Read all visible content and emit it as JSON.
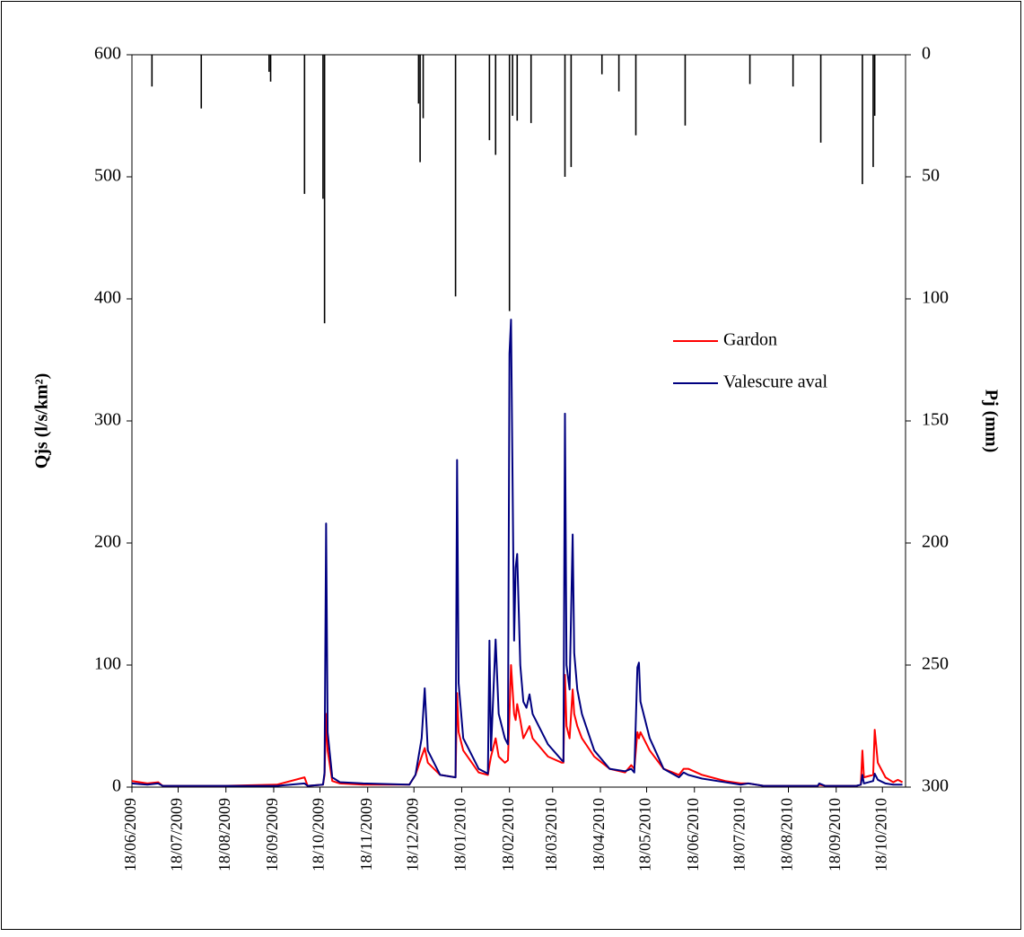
{
  "chart_data": {
    "type": "line",
    "ylabel": "Qjs (l/s/km²)",
    "y2label": "Pj (mm)",
    "xlim": [
      "18/06/2009",
      "02/11/2010"
    ],
    "xticks": [
      "18/06/2009",
      "18/07/2009",
      "18/08/2009",
      "18/09/2009",
      "18/10/2009",
      "18/11/2009",
      "18/12/2009",
      "18/01/2010",
      "18/02/2010",
      "18/03/2010",
      "18/04/2010",
      "18/05/2010",
      "18/06/2010",
      "18/07/2010",
      "18/08/2010",
      "18/09/2010",
      "18/10/2010"
    ],
    "ylim": [
      0,
      600
    ],
    "yticks": [
      0,
      100,
      200,
      300,
      400,
      500,
      600
    ],
    "y2lim": [
      300,
      0
    ],
    "y2ticks": [
      0,
      50,
      100,
      150,
      200,
      250,
      300
    ],
    "legend": "right",
    "x": [
      "18/06/2009",
      "28/06/2009",
      "05/07/2009",
      "08/07/2009",
      "17/08/2009",
      "20/09/2009",
      "08/10/2009",
      "10/10/2009",
      "20/10/2009",
      "21/10/2009",
      "22/10/2009",
      "23/10/2009",
      "26/10/2009",
      "31/10/2009",
      "15/11/2009",
      "15/12/2009",
      "19/12/2009",
      "23/12/2009",
      "25/12/2009",
      "27/12/2009",
      "04/01/2010",
      "14/01/2010",
      "15/01/2010",
      "16/01/2010",
      "19/01/2010",
      "29/01/2010",
      "04/02/2010",
      "05/02/2010",
      "06/02/2010",
      "09/02/2010",
      "11/02/2010",
      "15/02/2010",
      "17/02/2010",
      "18/02/2010",
      "19/02/2010",
      "21/02/2010",
      "22/02/2010",
      "23/02/2010",
      "25/02/2010",
      "27/02/2010",
      "01/03/2010",
      "03/03/2010",
      "05/03/2010",
      "15/03/2010",
      "24/03/2010",
      "25/03/2010",
      "26/03/2010",
      "27/03/2010",
      "29/03/2010",
      "31/03/2010",
      "01/04/2010",
      "03/04/2010",
      "06/04/2010",
      "14/04/2010",
      "24/04/2010",
      "04/05/2010",
      "08/05/2010",
      "10/05/2010",
      "12/05/2010",
      "13/05/2010",
      "14/05/2010",
      "16/05/2010",
      "20/05/2010",
      "29/05/2010",
      "08/06/2010",
      "11/06/2010",
      "14/06/2010",
      "23/06/2010",
      "08/07/2010",
      "18/07/2010",
      "23/07/2010",
      "02/08/2010",
      "06/09/2010",
      "07/09/2010",
      "11/09/2010",
      "01/10/2010",
      "04/10/2010",
      "05/10/2010",
      "06/10/2010",
      "12/10/2010",
      "13/10/2010",
      "15/10/2010",
      "20/10/2010",
      "25/10/2010",
      "28/10/2010",
      "31/10/2010"
    ],
    "series": [
      {
        "name": "Gardon",
        "color": "#ff0000",
        "values": [
          5,
          3,
          4,
          1,
          1,
          2,
          8,
          1,
          2,
          10,
          60,
          30,
          5,
          3,
          2,
          2,
          10,
          25,
          32,
          20,
          10,
          8,
          77,
          45,
          30,
          12,
          10,
          18,
          25,
          40,
          25,
          20,
          22,
          60,
          100,
          60,
          55,
          68,
          55,
          40,
          45,
          50,
          40,
          25,
          20,
          20,
          92,
          50,
          40,
          80,
          60,
          50,
          40,
          25,
          15,
          12,
          18,
          15,
          45,
          40,
          45,
          40,
          30,
          15,
          10,
          15,
          15,
          10,
          5,
          3,
          3,
          1,
          1,
          2,
          1,
          1,
          2,
          30,
          8,
          10,
          47,
          20,
          8,
          4,
          6,
          4
        ]
      },
      {
        "name": "Valescure aval",
        "color": "#000080",
        "values": [
          3,
          2,
          3,
          1,
          1,
          1,
          3,
          1,
          2,
          12,
          216,
          45,
          8,
          4,
          3,
          2,
          10,
          40,
          81,
          30,
          10,
          8,
          268,
          85,
          40,
          15,
          11,
          120,
          30,
          121,
          60,
          40,
          35,
          355,
          383,
          120,
          180,
          191,
          100,
          70,
          65,
          76,
          60,
          35,
          22,
          21,
          306,
          100,
          80,
          207,
          110,
          80,
          60,
          30,
          15,
          13,
          15,
          12,
          98,
          102,
          70,
          60,
          40,
          15,
          8,
          12,
          10,
          7,
          4,
          2,
          3,
          1,
          1,
          3,
          1,
          1,
          2,
          10,
          3,
          5,
          11,
          6,
          3,
          2,
          2,
          2
        ]
      },
      {
        "type": "bar",
        "axis": "y2",
        "color": "#000000",
        "x": [
          "01/07/2009",
          "02/08/2009",
          "15/09/2009",
          "16/09/2009",
          "08/10/2009",
          "20/10/2009",
          "21/10/2009",
          "21/12/2009",
          "22/12/2009",
          "24/12/2009",
          "14/01/2010",
          "05/02/2010",
          "09/02/2010",
          "18/02/2010",
          "20/02/2010",
          "23/02/2010",
          "04/03/2010",
          "26/03/2010",
          "30/03/2010",
          "19/04/2010",
          "30/04/2010",
          "11/05/2010",
          "12/06/2010",
          "24/07/2010",
          "21/08/2010",
          "08/09/2010",
          "05/10/2010",
          "12/10/2010",
          "13/10/2010"
        ],
        "values": [
          13,
          22,
          7,
          11,
          57,
          59,
          110,
          20,
          44,
          26,
          99,
          35,
          41,
          105,
          25,
          27,
          28,
          50,
          46,
          8,
          15,
          33,
          29,
          12,
          13,
          36,
          53,
          46,
          25
        ]
      }
    ]
  }
}
